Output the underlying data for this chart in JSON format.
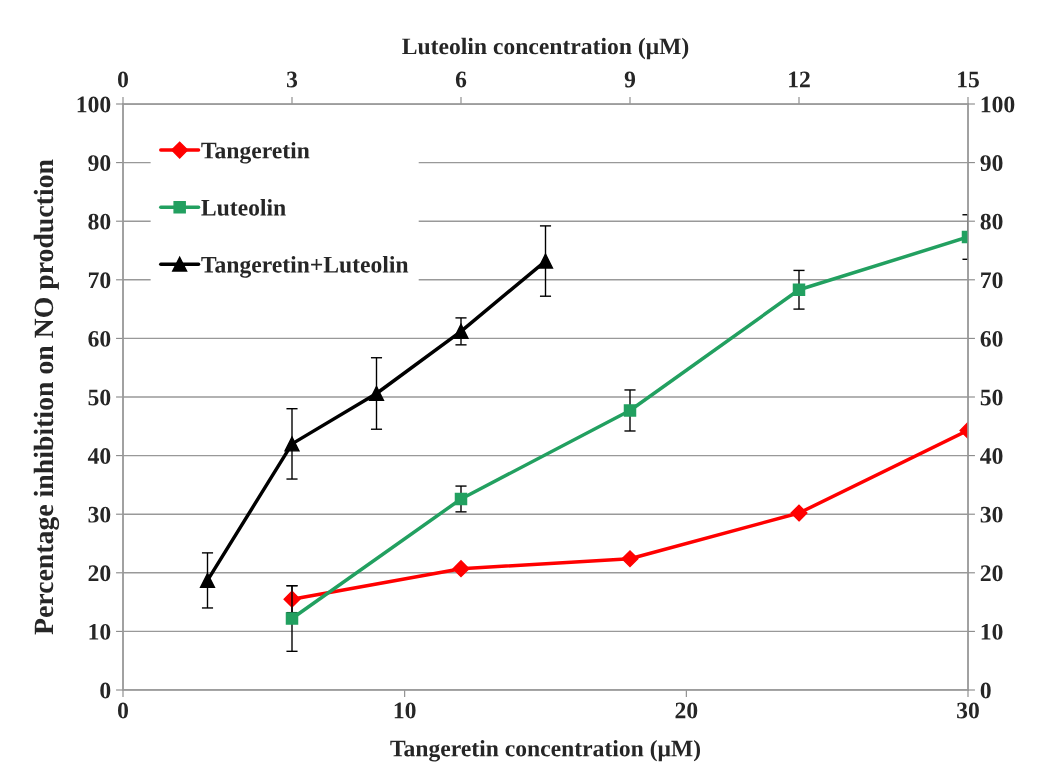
{
  "chart_data": {
    "type": "line",
    "xlabel": "Tangeretin concentration (μM)",
    "x2label": "Luteolin concentration (μM)",
    "ylabel": "Percentage inhibition on NO production",
    "xlim": [
      0,
      30
    ],
    "xticks": [
      0,
      10,
      20,
      30
    ],
    "x2lim": [
      0,
      15
    ],
    "x2ticks": [
      0,
      3,
      6,
      9,
      12,
      15
    ],
    "ylim": [
      0,
      100
    ],
    "yticks": [
      0,
      10,
      20,
      30,
      40,
      50,
      60,
      70,
      80,
      90,
      100
    ],
    "y2lim": [
      0,
      100
    ],
    "y2ticks": [
      0,
      10,
      20,
      30,
      40,
      50,
      60,
      70,
      80,
      90,
      100
    ],
    "grid": "y",
    "legend": "top left",
    "line_style": "solid",
    "series": [
      {
        "name": "Tangeretin",
        "color": "#ff0000",
        "marker": "diamond",
        "x": [
          6,
          12,
          18,
          24,
          30
        ],
        "values": [
          15.5,
          20.7,
          22.4,
          30.2,
          44.3
        ],
        "errors": [
          2.3,
          null,
          null,
          null,
          null
        ]
      },
      {
        "name": "Luteolin",
        "color": "#22a060",
        "marker": "square",
        "axis": "x2",
        "x": [
          3,
          6,
          9,
          12,
          15
        ],
        "values": [
          12.2,
          32.6,
          47.7,
          68.3,
          77.3
        ],
        "errors": [
          5.6,
          2.2,
          3.5,
          3.3,
          3.8
        ]
      },
      {
        "name": "Tangeretin+Luteolin",
        "color": "#000000",
        "marker": "triangle",
        "x": [
          3,
          6,
          9,
          12,
          15
        ],
        "values": [
          18.7,
          42.0,
          50.6,
          61.2,
          73.2
        ],
        "errors": [
          4.7,
          6.0,
          6.1,
          2.3,
          6.0
        ]
      }
    ]
  }
}
